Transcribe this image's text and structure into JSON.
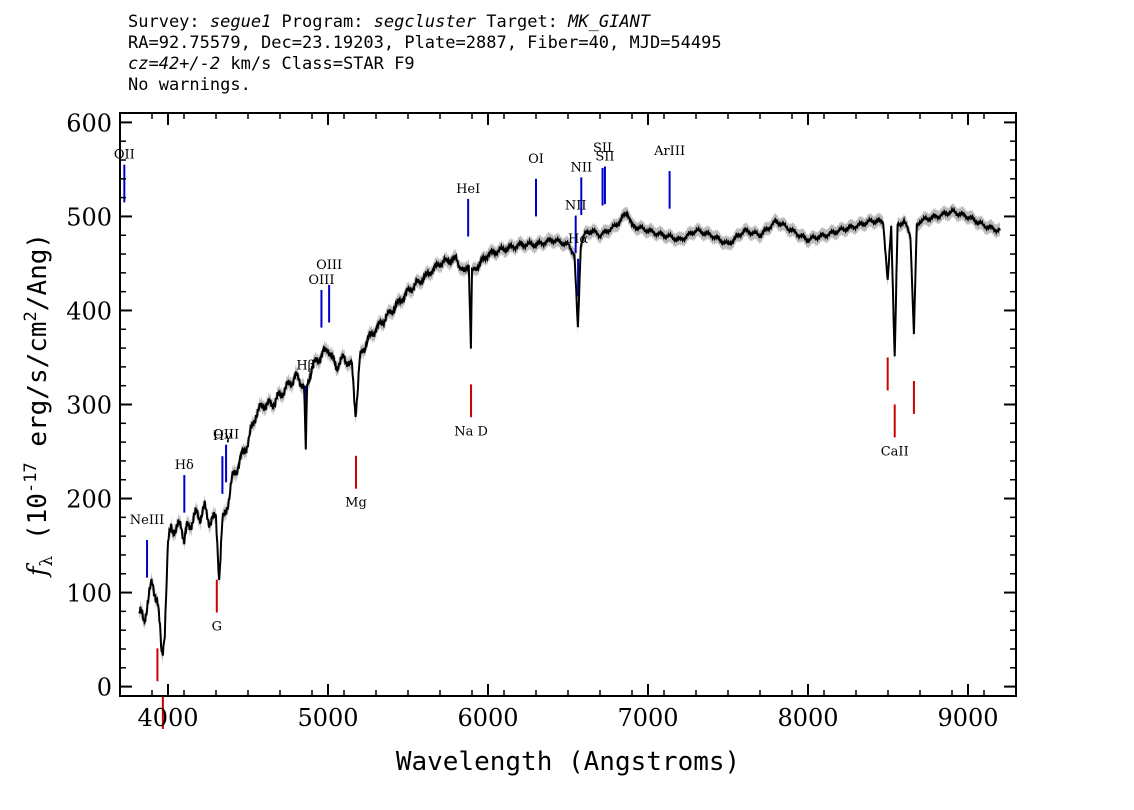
{
  "header": {
    "line1": {
      "survey_label": "Survey: ",
      "survey": "segue1",
      "program_label": " Program: ",
      "program": "segcluster",
      "target_label": " Target: ",
      "target": "MK_GIANT"
    },
    "line2": "RA=92.75579, Dec=23.19203, Plate=2887, Fiber=40, MJD=54495",
    "line3": {
      "cz": "cz=42+/-2",
      "rest": " km/s Class=STAR F9"
    },
    "line4": "No warnings."
  },
  "chart_data": {
    "type": "line",
    "xlabel": "Wavelength (Angstroms)",
    "ylabel": "f_λ (10^-17 erg/s/cm^2/Ang)",
    "xlim": [
      3700,
      9300
    ],
    "ylim": [
      -10,
      610
    ],
    "x_ticks": [
      4000,
      5000,
      6000,
      7000,
      8000,
      9000
    ],
    "y_ticks": [
      0,
      100,
      200,
      300,
      400,
      500,
      600
    ],
    "series": [
      {
        "color": "#000000",
        "error_color": "#bbbbbb",
        "x": [
          3820,
          3850,
          3880,
          3900,
          3920,
          3935,
          3950,
          3960,
          3968,
          3980,
          4000,
          4020,
          4050,
          4080,
          4102,
          4120,
          4150,
          4180,
          4200,
          4230,
          4260,
          4300,
          4320,
          4340,
          4360,
          4380,
          4400,
          4450,
          4500,
          4550,
          4600,
          4650,
          4700,
          4750,
          4800,
          4850,
          4861,
          4870,
          4900,
          4950,
          5000,
          5050,
          5100,
          5150,
          5172,
          5183,
          5200,
          5250,
          5300,
          5400,
          5500,
          5600,
          5700,
          5800,
          5850,
          5880,
          5893,
          5900,
          5950,
          6000,
          6100,
          6200,
          6300,
          6400,
          6500,
          6540,
          6562,
          6580,
          6600,
          6650,
          6700,
          6800,
          6870,
          6900,
          7000,
          7100,
          7200,
          7300,
          7400,
          7500,
          7600,
          7700,
          7800,
          7900,
          8000,
          8100,
          8200,
          8300,
          8400,
          8470,
          8498,
          8520,
          8542,
          8560,
          8600,
          8640,
          8662,
          8680,
          8700,
          8800,
          8900,
          9000,
          9100,
          9200
        ],
        "y": [
          80,
          70,
          95,
          110,
          100,
          90,
          60,
          35,
          40,
          60,
          150,
          170,
          165,
          175,
          155,
          170,
          175,
          185,
          180,
          190,
          175,
          180,
          115,
          175,
          185,
          200,
          220,
          240,
          260,
          290,
          300,
          300,
          310,
          320,
          330,
          320,
          250,
          320,
          340,
          350,
          360,
          340,
          350,
          340,
          290,
          310,
          350,
          370,
          380,
          400,
          420,
          435,
          450,
          455,
          440,
          450,
          360,
          440,
          450,
          460,
          465,
          470,
          470,
          475,
          470,
          460,
          380,
          470,
          480,
          485,
          480,
          490,
          505,
          490,
          485,
          480,
          475,
          485,
          480,
          470,
          485,
          480,
          495,
          485,
          475,
          480,
          485,
          490,
          495,
          495,
          430,
          490,
          350,
          490,
          495,
          480,
          375,
          490,
          495,
          500,
          505,
          500,
          490,
          485
        ]
      }
    ],
    "emission_lines": [
      {
        "name": "OII",
        "x": 3727
      },
      {
        "name": "NeIII",
        "x": 3869
      },
      {
        "name": "Hδ",
        "x": 4102
      },
      {
        "name": "Hγ",
        "x": 4340
      },
      {
        "name": "OIII",
        "x": 4363
      },
      {
        "name": "Hβ",
        "x": 4861
      },
      {
        "name": "OIII",
        "x": 4959
      },
      {
        "name": "OIII",
        "x": 5007
      },
      {
        "name": "HeI",
        "x": 5876
      },
      {
        "name": "OI",
        "x": 6300
      },
      {
        "name": "NII",
        "x": 6548
      },
      {
        "name": "Hα",
        "x": 6563
      },
      {
        "name": "NII",
        "x": 6583
      },
      {
        "name": "SII",
        "x": 6716
      },
      {
        "name": "SII",
        "x": 6731
      },
      {
        "name": "ArIII",
        "x": 7135
      }
    ],
    "absorption_lines": [
      {
        "name": "",
        "x": 3934
      },
      {
        "name": "",
        "x": 3968
      },
      {
        "name": "G",
        "x": 4305
      },
      {
        "name": "Mg",
        "x": 5175
      },
      {
        "name": "Na D",
        "x": 5894
      },
      {
        "name": "",
        "x": 8498
      },
      {
        "name": "CaII",
        "x": 8542
      },
      {
        "name": "",
        "x": 8662
      }
    ],
    "emission_color": "#0000cc",
    "absorption_color": "#cc0000"
  }
}
